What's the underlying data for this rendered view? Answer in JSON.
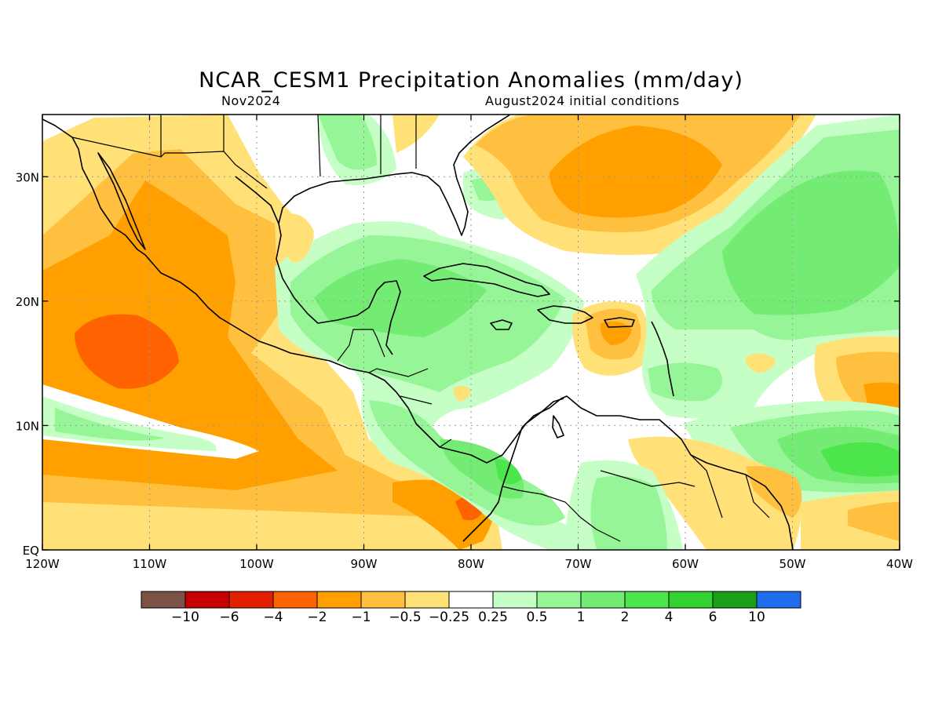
{
  "title": "NCAR_CESM1 Precipitation Anomalies (mm/day)",
  "valid_month": "Nov2024",
  "initial_conditions": "August2024 initial conditions",
  "map": {
    "lon_range": [
      -120,
      -40
    ],
    "lat_range": [
      0,
      35
    ],
    "lon_ticks": [
      {
        "value": -120,
        "label": "120W"
      },
      {
        "value": -110,
        "label": "110W"
      },
      {
        "value": -100,
        "label": "100W"
      },
      {
        "value": -90,
        "label": "90W"
      },
      {
        "value": -80,
        "label": "80W"
      },
      {
        "value": -70,
        "label": "70W"
      },
      {
        "value": -60,
        "label": "60W"
      },
      {
        "value": -50,
        "label": "50W"
      },
      {
        "value": -40,
        "label": "40W"
      }
    ],
    "lat_ticks": [
      {
        "value": 0,
        "label": "EQ"
      },
      {
        "value": 10,
        "label": "10N"
      },
      {
        "value": 20,
        "label": "20N"
      },
      {
        "value": 30,
        "label": "30N"
      }
    ]
  },
  "colorbar": {
    "colors": [
      "#7a5246",
      "#c50000",
      "#e21f00",
      "#ff6200",
      "#ffa000",
      "#ffc040",
      "#ffe178",
      "#ffffff",
      "#c5ffc5",
      "#96f596",
      "#74ec74",
      "#4ce54c",
      "#32d232",
      "#18a018",
      "#1e6eeb"
    ],
    "labels": [
      "−10",
      "−6",
      "−4",
      "−2",
      "−1",
      "−0.5",
      "−0.25",
      "0.25",
      "0.5",
      "1",
      "2",
      "4",
      "6",
      "10"
    ]
  }
}
